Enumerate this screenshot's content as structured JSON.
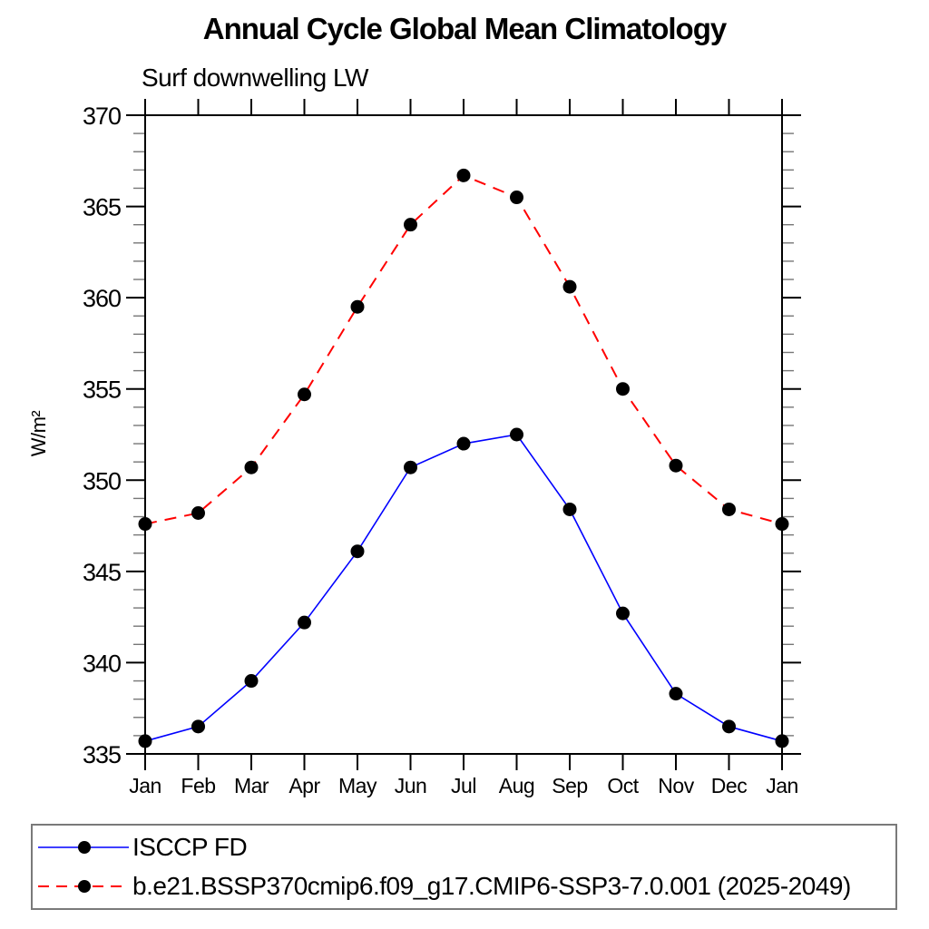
{
  "chart_data": {
    "type": "line",
    "title": "Annual Cycle Global Mean Climatology",
    "subtitle": "Surf downwelling LW",
    "ylabel": "W/m²",
    "xlabel": "",
    "categories": [
      "Jan",
      "Feb",
      "Mar",
      "Apr",
      "May",
      "Jun",
      "Jul",
      "Aug",
      "Sep",
      "Oct",
      "Nov",
      "Dec",
      "Jan"
    ],
    "ylim": [
      335,
      370
    ],
    "ytick_major": 5,
    "ytick_minor": 1,
    "grid": false,
    "legend_position": "bottom",
    "axis_color": "#000000",
    "series": [
      {
        "name": "ISCCP FD",
        "color": "#0000ff",
        "line_style": "solid",
        "marker": "filled-circle",
        "marker_color": "#000000",
        "values": [
          335.7,
          336.5,
          339.0,
          342.2,
          346.1,
          350.7,
          352.0,
          352.5,
          348.4,
          342.7,
          338.3,
          336.5,
          335.7
        ]
      },
      {
        "name": "b.e21.BSSP370cmip6.f09_g17.CMIP6-SSP3-7.0.001 (2025-2049)",
        "color": "#ff0000",
        "line_style": "dashed",
        "marker": "filled-circle",
        "marker_color": "#000000",
        "values": [
          347.6,
          348.2,
          350.7,
          354.7,
          359.5,
          364.0,
          366.7,
          365.5,
          360.6,
          355.0,
          350.8,
          348.4,
          347.6
        ]
      }
    ]
  }
}
